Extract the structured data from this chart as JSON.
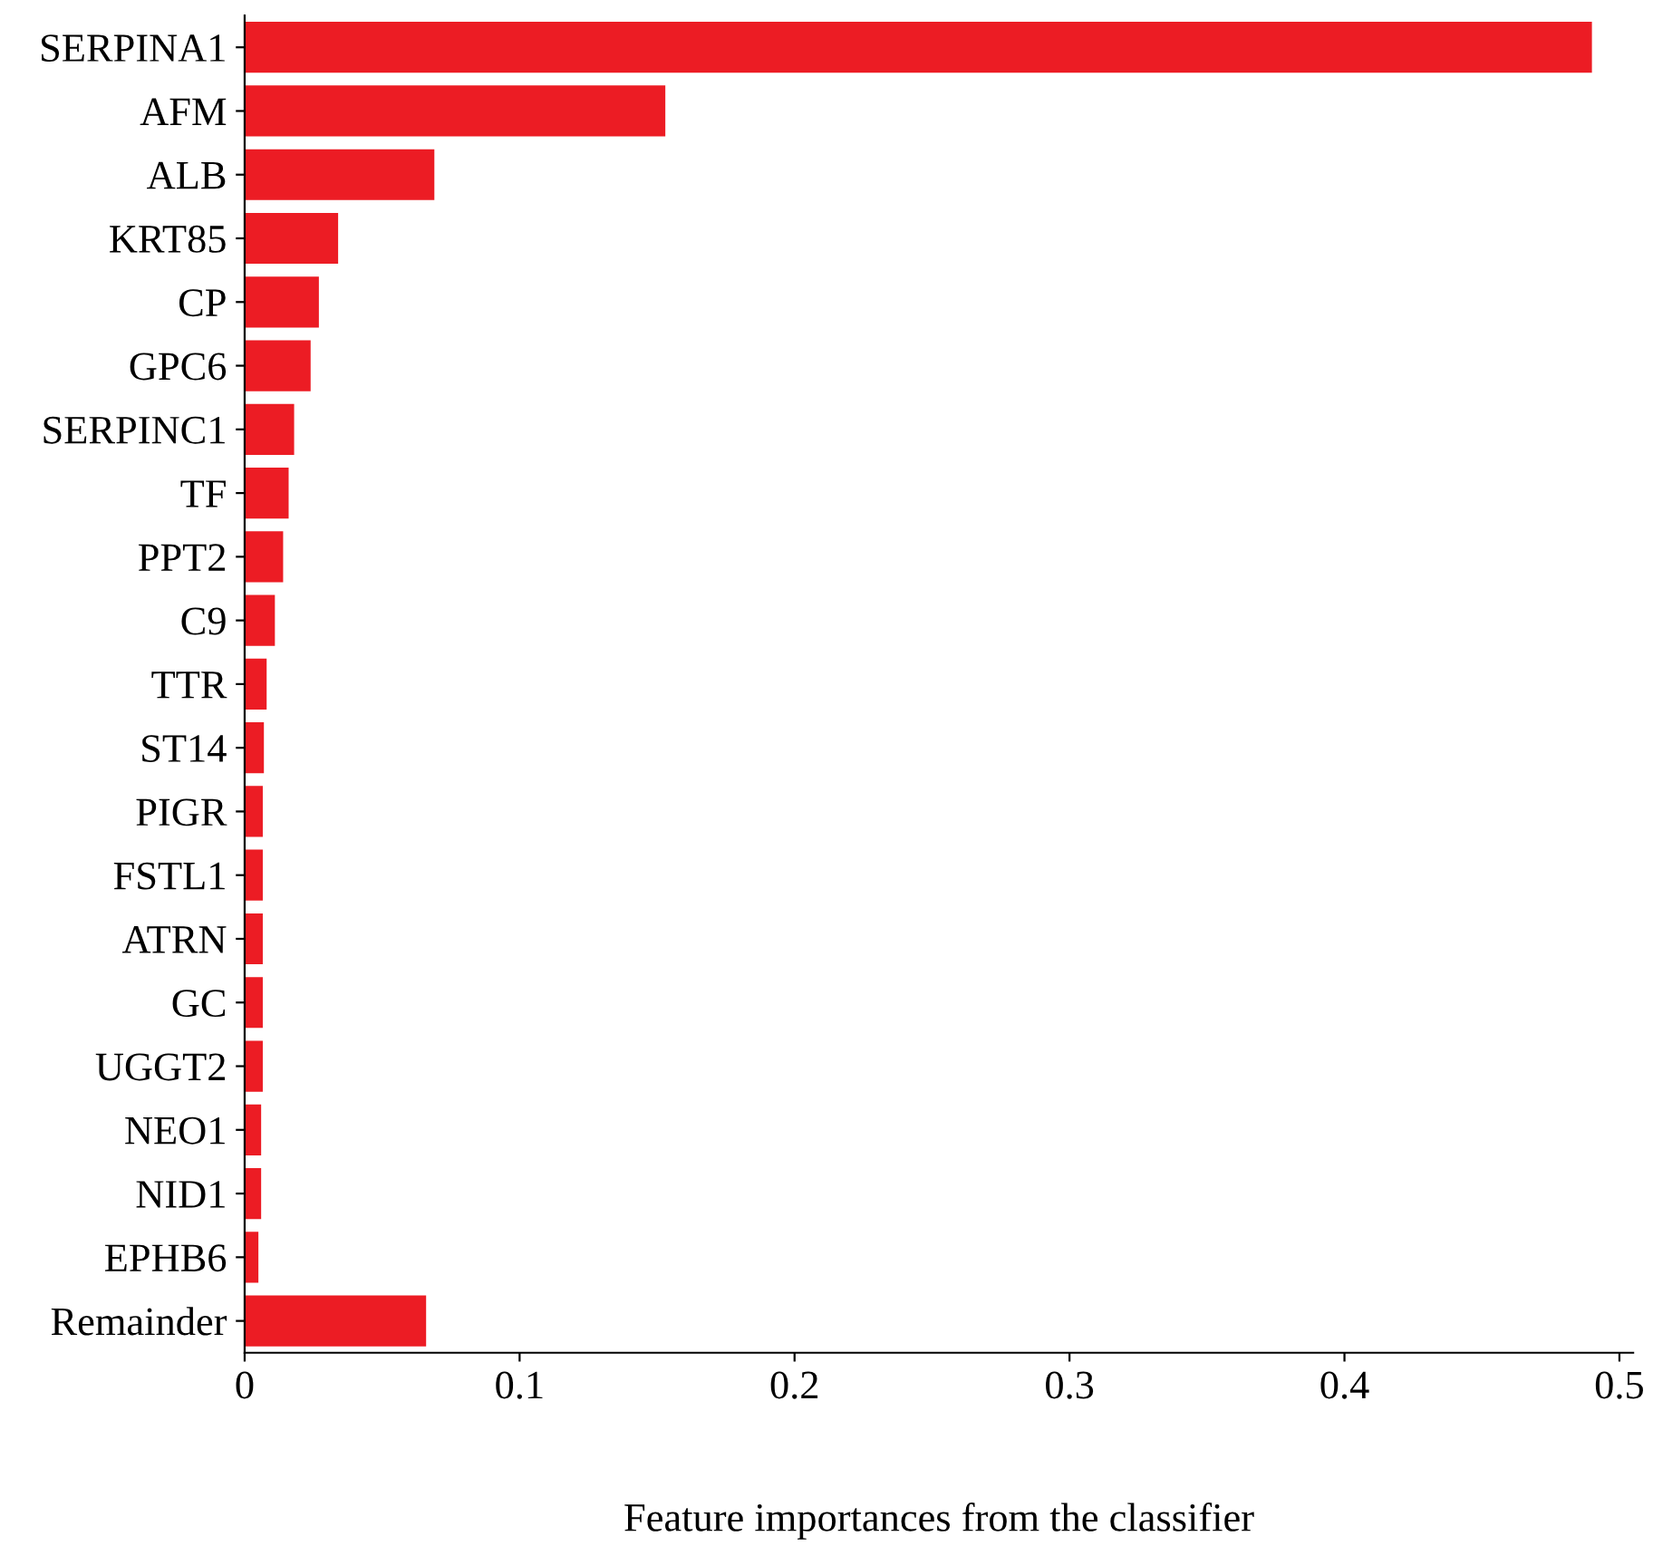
{
  "chart_data": {
    "type": "bar",
    "orientation": "horizontal",
    "xlabel": "Feature importances from the classifier",
    "categories": [
      "SERPINA1",
      "AFM",
      "ALB",
      "KRT85",
      "CP",
      "GPC6",
      "SERPINC1",
      "TF",
      "PPT2",
      "C9",
      "TTR",
      "ST14",
      "PIGR",
      "FSTL1",
      "ATRN",
      "GC",
      "UGGT2",
      "NEO1",
      "NID1",
      "EPHB6",
      "Remainder"
    ],
    "values": [
      0.49,
      0.153,
      0.069,
      0.034,
      0.027,
      0.024,
      0.018,
      0.016,
      0.014,
      0.011,
      0.008,
      0.007,
      0.0066,
      0.0066,
      0.0066,
      0.0066,
      0.0066,
      0.006,
      0.006,
      0.005,
      0.066
    ],
    "color": "#ec1c24",
    "xlim": [
      0,
      0.505
    ],
    "xticks": [
      0,
      0.1,
      0.2,
      0.3,
      0.4,
      0.5
    ],
    "grid": false,
    "legend": false
  }
}
